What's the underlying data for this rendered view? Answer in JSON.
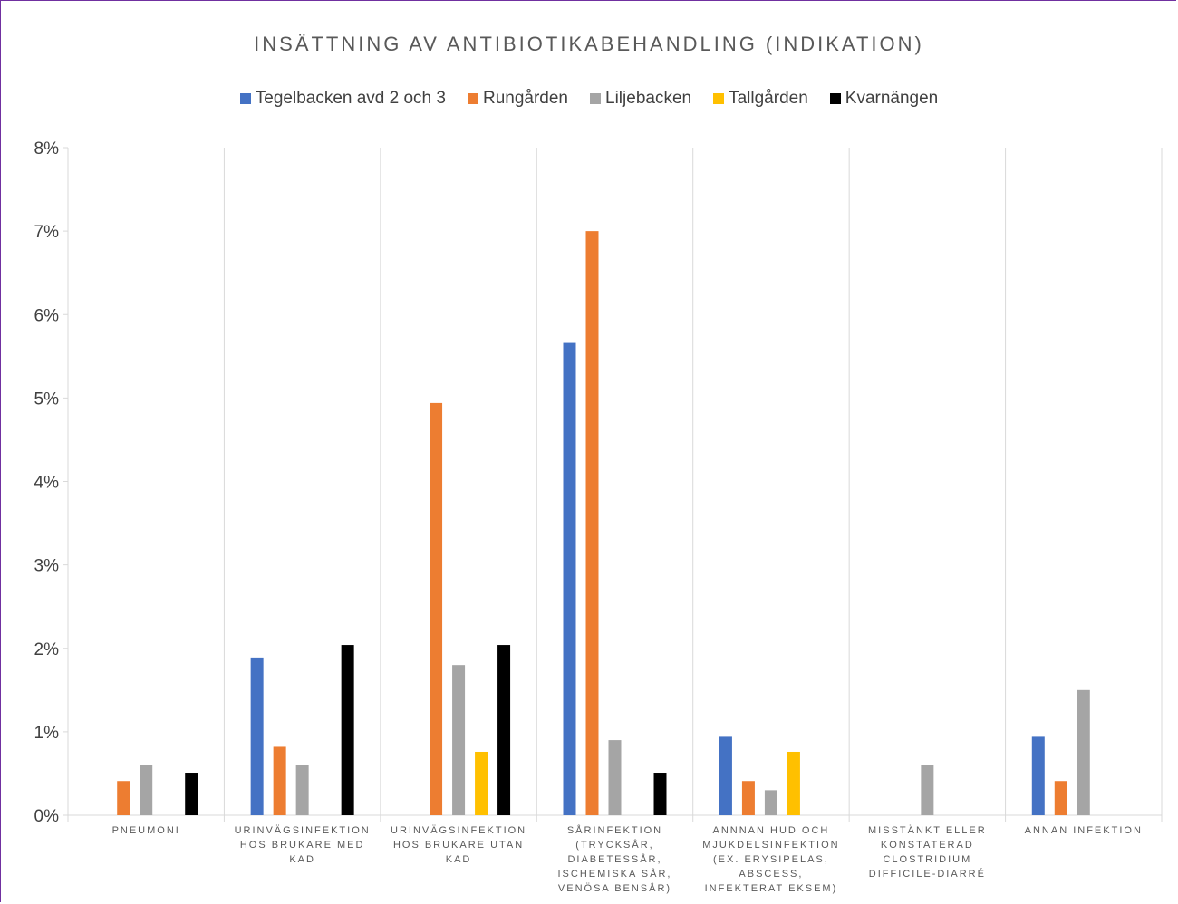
{
  "chart_data": {
    "type": "bar",
    "title": "INSÄTTNING AV ANTIBIOTIKABEHANDLING (INDIKATION)",
    "ylim": [
      0,
      8
    ],
    "yticks": [
      "0%",
      "1%",
      "2%",
      "3%",
      "4%",
      "5%",
      "6%",
      "7%",
      "8%"
    ],
    "grid": true,
    "legend_position": "top",
    "categories": [
      [
        "PNEUMONI"
      ],
      [
        "URINVÄGSINFEKTION",
        "HOS BRUKARE MED",
        "KAD"
      ],
      [
        "URINVÄGSINFEKTION",
        "HOS BRUKARE UTAN",
        "KAD"
      ],
      [
        "SÅRINFEKTION",
        "(TRYCKSÅR,",
        "DIABETESSÅR,",
        "ISCHEMISKA SÅR,",
        "VENÖSA BENSÅR)"
      ],
      [
        "ANNNAN HUD OCH",
        "MJUKDELSINFEKTION",
        "(EX. ERYSIPELAS,",
        "ABSCESS,",
        "INFEKTERAT EKSEM)"
      ],
      [
        "MISSTÄNKT ELLER",
        "KONSTATERAD",
        "CLOSTRIDIUM",
        "DIFFICILE-DIARRÉ"
      ],
      [
        "ANNAN INFEKTION"
      ]
    ],
    "series": [
      {
        "name": "Tegelbacken avd 2 och 3",
        "color": "#4472c4",
        "values": [
          0,
          1.89,
          0,
          5.66,
          0.94,
          0,
          0.94
        ]
      },
      {
        "name": "Rungården",
        "color": "#ed7d31",
        "values": [
          0.41,
          0.82,
          4.94,
          7.0,
          0.41,
          0,
          0.41
        ]
      },
      {
        "name": "Liljebacken",
        "color": "#a5a5a5",
        "values": [
          0.6,
          0.6,
          1.8,
          0.9,
          0.3,
          0.6,
          1.5
        ]
      },
      {
        "name": "Tallgården",
        "color": "#ffc000",
        "values": [
          0,
          0,
          0.76,
          0,
          0.76,
          0,
          0
        ]
      },
      {
        "name": "Kvarnängen",
        "color": "#000000",
        "values": [
          0.51,
          2.04,
          2.04,
          0.51,
          0,
          0,
          0
        ]
      }
    ]
  }
}
